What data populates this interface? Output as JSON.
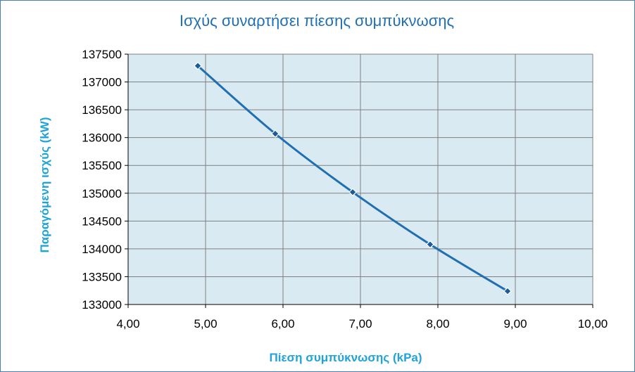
{
  "chart_data": {
    "type": "line",
    "title": "Ισχύς συναρτήσει πίεσης συμπύκνωσης",
    "xlabel": "Πίεση συμπύκνωσης (kPa)",
    "ylabel": "Παραγόμενη ισχύς (kW)",
    "xlim": [
      4.0,
      10.0
    ],
    "ylim": [
      133000,
      137500
    ],
    "xticks": [
      4.0,
      5.0,
      6.0,
      7.0,
      8.0,
      9.0,
      10.0
    ],
    "xtick_labels": [
      "4,00",
      "5,00",
      "6,00",
      "7,00",
      "8,00",
      "9,00",
      "10,00"
    ],
    "yticks": [
      133000,
      133500,
      134000,
      134500,
      135000,
      135500,
      136000,
      136500,
      137000,
      137500
    ],
    "ytick_labels": [
      "133000",
      "133500",
      "134000",
      "134500",
      "135000",
      "135500",
      "136000",
      "136500",
      "137000",
      "137500"
    ],
    "grid": true,
    "marker": "diamond",
    "series": [
      {
        "x": [
          4.9,
          5.9,
          6.9,
          7.9,
          8.9
        ],
        "y": [
          137290,
          136070,
          135020,
          134080,
          133240
        ]
      }
    ],
    "colors": {
      "plot_bg": "#daeaf2",
      "grid": "#808080",
      "line": "#1f6fb2",
      "marker_fill": "#1a5c99",
      "title": "#1f6fb2",
      "axis_title": "#1fa3d9"
    }
  }
}
